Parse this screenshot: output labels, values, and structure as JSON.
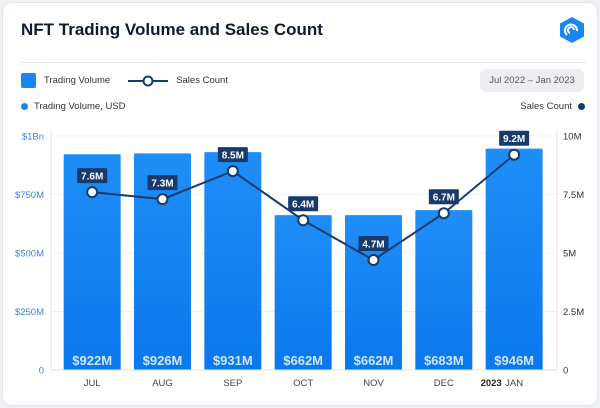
{
  "title": "NFT Trading Volume and Sales Count",
  "legend": {
    "bars": "Trading Volume",
    "line": "Sales Count"
  },
  "date_range": "Jul 2022 – Jan 2023",
  "axis_names": {
    "left": "Trading Volume, USD",
    "right": "Sales Count"
  },
  "colors": {
    "bar": "#1a86f5",
    "line": "#173a6a",
    "left_axis": "#3a86d0",
    "accent": "#1a86f5"
  },
  "chart_data": {
    "type": "bar+line",
    "title": "NFT Trading Volume and Sales Count",
    "categories": [
      "JUL",
      "AUG",
      "SEP",
      "OCT",
      "NOV",
      "DEC",
      "JAN"
    ],
    "year_marker": {
      "category": "JAN",
      "label": "2023"
    },
    "series": [
      {
        "name": "Trading Volume",
        "type": "bar",
        "axis": "left",
        "values": [
          922,
          926,
          931,
          662,
          662,
          683,
          946
        ],
        "labels": [
          "$922M",
          "$926M",
          "$931M",
          "$662M",
          "$662M",
          "$683M",
          "$946M"
        ]
      },
      {
        "name": "Sales Count",
        "type": "line",
        "axis": "right",
        "values": [
          7.6,
          7.3,
          8.5,
          6.4,
          4.7,
          6.7,
          9.2
        ],
        "labels": [
          "7.6M",
          "7.3M",
          "8.5M",
          "6.4M",
          "4.7M",
          "6.7M",
          "9.2M"
        ]
      }
    ],
    "left_axis": {
      "label": "Trading Volume, USD",
      "unit": "USD millions",
      "range": [
        0,
        1000
      ],
      "ticks": [
        0,
        250,
        500,
        750,
        1000
      ],
      "tick_labels": [
        "0",
        "$250M",
        "$500M",
        "$750M",
        "$1Bn"
      ]
    },
    "right_axis": {
      "label": "Sales Count",
      "unit": "millions",
      "range": [
        0,
        10
      ],
      "ticks": [
        0,
        2.5,
        5,
        7.5,
        10
      ],
      "tick_labels": [
        "0",
        "2.5M",
        "5M",
        "7.5M",
        "10M"
      ]
    },
    "grid": true
  }
}
